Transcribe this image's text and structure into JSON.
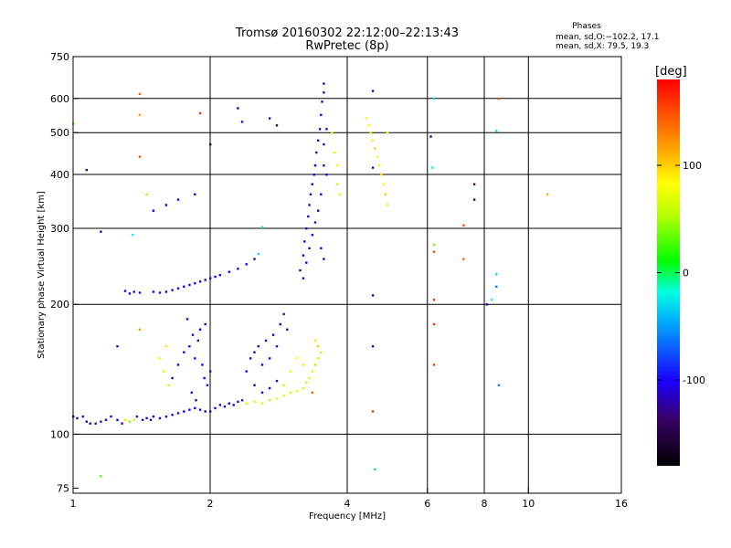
{
  "chart_data": {
    "type": "scatter",
    "title": "Tromsø 20160302 22:12:00–22:13:43",
    "subtitle": "RwPretec (8p)",
    "phases_heading": "Phases",
    "stats": [
      "mean, sd,O:−102.2, 17.1",
      "mean, sd,X:  79.5, 19.3"
    ],
    "xlabel": "Frequency [MHz]",
    "ylabel": "Stationary phase Virtual Height [km]",
    "xscale": "log",
    "yscale": "log",
    "xlim": [
      1,
      16
    ],
    "ylim": [
      73,
      750
    ],
    "xticks": [
      1,
      2,
      4,
      6,
      8,
      10,
      16
    ],
    "xgrid": [
      2,
      4,
      6,
      8,
      10
    ],
    "yticks": [
      75,
      100,
      200,
      300,
      400,
      500,
      600,
      750
    ],
    "ygrid": [
      100,
      200,
      300,
      400,
      500,
      600
    ],
    "grid": true,
    "colorbar": {
      "label": "[deg]",
      "min": -180,
      "max": 180,
      "ticks": [
        100,
        0,
        -100
      ]
    },
    "series": [
      {
        "color_mode": "phase",
        "points": [
          [
            1.0,
            110,
            -110
          ],
          [
            1.02,
            109,
            -110
          ],
          [
            1.05,
            110,
            -105
          ],
          [
            1.07,
            107,
            -110
          ],
          [
            1.09,
            106,
            -115
          ],
          [
            1.12,
            106,
            -110
          ],
          [
            1.15,
            107,
            -105
          ],
          [
            1.18,
            108,
            -110
          ],
          [
            1.21,
            110,
            -100
          ],
          [
            1.25,
            108,
            -110
          ],
          [
            1.28,
            106,
            -110
          ],
          [
            1.3,
            108,
            70
          ],
          [
            1.33,
            107,
            40
          ],
          [
            1.36,
            108,
            60
          ],
          [
            1.38,
            110,
            -110
          ],
          [
            1.42,
            108,
            -105
          ],
          [
            1.45,
            109,
            -110
          ],
          [
            1.48,
            108,
            -100
          ],
          [
            1.5,
            110,
            -110
          ],
          [
            1.55,
            109,
            -110
          ],
          [
            1.6,
            110,
            -105
          ],
          [
            1.65,
            111,
            -100
          ],
          [
            1.7,
            112,
            -110
          ],
          [
            1.75,
            113,
            -110
          ],
          [
            1.8,
            114,
            -105
          ],
          [
            1.85,
            115,
            -110
          ],
          [
            1.9,
            114,
            -100
          ],
          [
            1.95,
            113,
            -110
          ],
          [
            2.0,
            113,
            -110
          ],
          [
            2.05,
            115,
            -105
          ],
          [
            2.1,
            117,
            -110
          ],
          [
            2.15,
            116,
            -100
          ],
          [
            2.2,
            118,
            -110
          ],
          [
            2.25,
            117,
            -105
          ],
          [
            2.3,
            119,
            -110
          ],
          [
            2.35,
            120,
            -100
          ],
          [
            1.55,
            150,
            80
          ],
          [
            1.58,
            140,
            70
          ],
          [
            1.6,
            160,
            90
          ],
          [
            1.62,
            130,
            60
          ],
          [
            1.65,
            135,
            -110
          ],
          [
            1.7,
            145,
            -100
          ],
          [
            1.75,
            155,
            -110
          ],
          [
            1.8,
            160,
            -105
          ],
          [
            1.83,
            170,
            -110
          ],
          [
            1.85,
            150,
            -100
          ],
          [
            1.88,
            165,
            -110
          ],
          [
            1.9,
            175,
            -110
          ],
          [
            1.92,
            145,
            -105
          ],
          [
            1.95,
            180,
            -110
          ],
          [
            1.97,
            130,
            -100
          ],
          [
            2.0,
            140,
            -110
          ],
          [
            1.78,
            185,
            -110
          ],
          [
            1.82,
            125,
            -105
          ],
          [
            1.86,
            120,
            -110
          ],
          [
            1.94,
            135,
            -100
          ],
          [
            2.4,
            140,
            -110
          ],
          [
            2.45,
            150,
            -105
          ],
          [
            2.5,
            155,
            -110
          ],
          [
            2.55,
            160,
            -100
          ],
          [
            2.6,
            145,
            -110
          ],
          [
            2.65,
            165,
            -110
          ],
          [
            2.7,
            150,
            -105
          ],
          [
            2.75,
            170,
            -110
          ],
          [
            2.8,
            160,
            -100
          ],
          [
            2.85,
            180,
            -110
          ],
          [
            2.9,
            190,
            -105
          ],
          [
            2.95,
            175,
            -110
          ],
          [
            2.5,
            130,
            -110
          ],
          [
            2.6,
            125,
            -100
          ],
          [
            2.7,
            128,
            -110
          ],
          [
            2.8,
            133,
            -105
          ],
          [
            2.4,
            118,
            60
          ],
          [
            2.5,
            119,
            70
          ],
          [
            2.6,
            118,
            65
          ],
          [
            2.7,
            120,
            60
          ],
          [
            2.8,
            121,
            70
          ],
          [
            2.9,
            123,
            65
          ],
          [
            3.0,
            125,
            60
          ],
          [
            3.1,
            126,
            70
          ],
          [
            3.2,
            128,
            65
          ],
          [
            3.25,
            132,
            60
          ],
          [
            3.3,
            135,
            70
          ],
          [
            3.35,
            140,
            90
          ],
          [
            3.4,
            145,
            100
          ],
          [
            3.45,
            150,
            90
          ],
          [
            3.5,
            155,
            95
          ],
          [
            3.45,
            160,
            100
          ],
          [
            3.4,
            165,
            90
          ],
          [
            3.0,
            140,
            70
          ],
          [
            3.1,
            150,
            80
          ],
          [
            3.2,
            145,
            90
          ],
          [
            2.9,
            130,
            60
          ],
          [
            3.35,
            125,
            140
          ],
          [
            1.3,
            215,
            -110
          ],
          [
            1.33,
            212,
            -105
          ],
          [
            1.36,
            214,
            -110
          ],
          [
            1.4,
            213,
            -100
          ],
          [
            1.5,
            214,
            -110
          ],
          [
            1.55,
            213,
            -105
          ],
          [
            1.6,
            214,
            -110
          ],
          [
            1.65,
            216,
            -100
          ],
          [
            1.7,
            218,
            -110
          ],
          [
            1.75,
            220,
            -105
          ],
          [
            1.8,
            222,
            -110
          ],
          [
            1.85,
            224,
            -100
          ],
          [
            1.9,
            226,
            -110
          ],
          [
            1.95,
            228,
            -105
          ],
          [
            2.0,
            230,
            -110
          ],
          [
            2.05,
            232,
            -100
          ],
          [
            2.1,
            234,
            -110
          ],
          [
            2.2,
            238,
            -105
          ],
          [
            2.3,
            242,
            -110
          ],
          [
            2.4,
            248,
            -100
          ],
          [
            2.5,
            255,
            -110
          ],
          [
            2.55,
            262,
            -30
          ],
          [
            3.15,
            240,
            -110
          ],
          [
            3.2,
            260,
            -105
          ],
          [
            3.22,
            280,
            -110
          ],
          [
            3.25,
            300,
            -100
          ],
          [
            3.28,
            320,
            -110
          ],
          [
            3.3,
            340,
            -105
          ],
          [
            3.32,
            360,
            -110
          ],
          [
            3.35,
            380,
            -100
          ],
          [
            3.38,
            400,
            -110
          ],
          [
            3.4,
            420,
            -105
          ],
          [
            3.42,
            450,
            -110
          ],
          [
            3.45,
            480,
            -100
          ],
          [
            3.48,
            510,
            -110
          ],
          [
            3.5,
            550,
            -105
          ],
          [
            3.52,
            590,
            -110
          ],
          [
            3.55,
            620,
            -100
          ],
          [
            3.55,
            650,
            -110
          ],
          [
            3.5,
            360,
            -110
          ],
          [
            3.45,
            330,
            -105
          ],
          [
            3.4,
            310,
            -110
          ],
          [
            3.35,
            290,
            -100
          ],
          [
            3.3,
            270,
            -110
          ],
          [
            3.25,
            250,
            -105
          ],
          [
            3.2,
            230,
            -110
          ],
          [
            3.55,
            420,
            -110
          ],
          [
            3.55,
            470,
            -100
          ],
          [
            3.6,
            510,
            -110
          ],
          [
            3.6,
            400,
            -105
          ],
          [
            3.5,
            270,
            -110
          ],
          [
            3.55,
            255,
            -100
          ],
          [
            3.7,
            500,
            60
          ],
          [
            3.75,
            450,
            70
          ],
          [
            3.8,
            420,
            80
          ],
          [
            3.8,
            380,
            60
          ],
          [
            3.85,
            360,
            70
          ],
          [
            4.4,
            540,
            90
          ],
          [
            4.45,
            520,
            80
          ],
          [
            4.5,
            500,
            70
          ],
          [
            4.55,
            480,
            90
          ],
          [
            4.6,
            460,
            100
          ],
          [
            4.65,
            440,
            80
          ],
          [
            4.7,
            420,
            70
          ],
          [
            4.75,
            400,
            90
          ],
          [
            4.8,
            380,
            80
          ],
          [
            4.85,
            360,
            100
          ],
          [
            4.9,
            340,
            90
          ],
          [
            4.9,
            500,
            70
          ],
          [
            1.0,
            525,
            30
          ],
          [
            1.15,
            295,
            -100
          ],
          [
            1.07,
            410,
            -140
          ],
          [
            1.4,
            615,
            140
          ],
          [
            1.4,
            550,
            120
          ],
          [
            1.4,
            440,
            150
          ],
          [
            1.45,
            360,
            100
          ],
          [
            1.5,
            330,
            -110
          ],
          [
            1.6,
            340,
            -110
          ],
          [
            1.7,
            350,
            -105
          ],
          [
            1.85,
            360,
            -110
          ],
          [
            1.9,
            555,
            160
          ],
          [
            2.0,
            470,
            -150
          ],
          [
            2.3,
            570,
            -120
          ],
          [
            2.35,
            530,
            -110
          ],
          [
            2.6,
            302,
            -30
          ],
          [
            2.7,
            540,
            -130
          ],
          [
            2.8,
            520,
            -140
          ],
          [
            4.55,
            625,
            -120
          ],
          [
            4.55,
            415,
            -110
          ],
          [
            4.55,
            210,
            -120
          ],
          [
            4.55,
            160,
            -100
          ],
          [
            4.55,
            113,
            160
          ],
          [
            4.6,
            83,
            -30
          ],
          [
            6.1,
            490,
            -130
          ],
          [
            6.2,
            600,
            -30
          ],
          [
            6.15,
            415,
            -20
          ],
          [
            6.2,
            275,
            40
          ],
          [
            6.2,
            265,
            150
          ],
          [
            6.2,
            205,
            160
          ],
          [
            6.2,
            180,
            160
          ],
          [
            6.2,
            145,
            160
          ],
          [
            7.2,
            305,
            150
          ],
          [
            7.2,
            255,
            140
          ],
          [
            7.6,
            380,
            -140
          ],
          [
            7.6,
            350,
            -150
          ],
          [
            8.1,
            200,
            -110
          ],
          [
            8.3,
            205,
            -20
          ],
          [
            8.5,
            235,
            -30
          ],
          [
            8.5,
            220,
            -60
          ],
          [
            8.6,
            130,
            -60
          ],
          [
            8.6,
            600,
            150
          ],
          [
            8.5,
            505,
            -30
          ],
          [
            11.0,
            360,
            110
          ],
          [
            1.15,
            80,
            30
          ],
          [
            1.35,
            290,
            -20
          ],
          [
            1.25,
            160,
            -110
          ],
          [
            1.4,
            175,
            120
          ]
        ]
      }
    ]
  }
}
